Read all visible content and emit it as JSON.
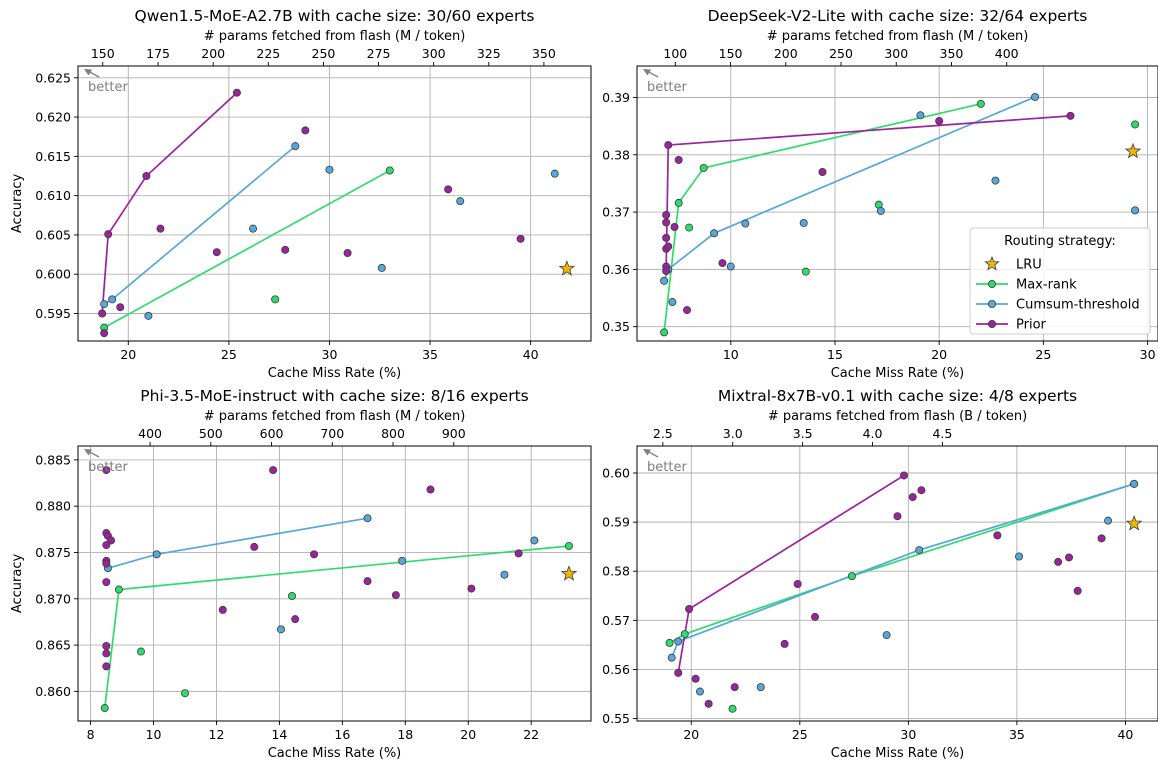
{
  "chart_data": [
    {
      "type": "scatter",
      "title": "Qwen1.5-MoE-A2.7B with cache size: 30/60 experts",
      "xlabel": "Cache Miss Rate (%)",
      "ylabel": "Accuracy",
      "top_xlabel": "# params fetched from flash (M / token)",
      "better_label": "better",
      "xlim": [
        17.5,
        43
      ],
      "ylim": [
        0.5915,
        0.6265
      ],
      "xticks": [
        20,
        25,
        30,
        35,
        40
      ],
      "yticks": [
        0.595,
        0.6,
        0.605,
        0.61,
        0.615,
        0.62,
        0.625
      ],
      "top_ticks": {
        "values": [
          150,
          175,
          200,
          225,
          250,
          275,
          300,
          325,
          350
        ],
        "positions": [
          18.73,
          21.48,
          24.22,
          26.96,
          29.7,
          32.44,
          35.18,
          37.92,
          40.66
        ]
      },
      "series": [
        {
          "name": "LRU",
          "marker": "star",
          "color": "#f2b705",
          "connect": false,
          "points": [
            [
              41.8,
              0.6007
            ]
          ]
        },
        {
          "name": "Max-rank",
          "marker": "circle",
          "color": "#2ddc6b",
          "connect": true,
          "points": [
            [
              18.8,
              0.5932
            ],
            [
              33.0,
              0.6132
            ]
          ]
        },
        {
          "name": "Max-rank",
          "marker": "circle",
          "color": "#2ddc6b",
          "connect": false,
          "points": [
            [
              27.3,
              0.5968
            ]
          ]
        },
        {
          "name": "Cumsum-threshold",
          "marker": "circle",
          "color": "#56a8d8",
          "connect": true,
          "points": [
            [
              18.8,
              0.5962
            ],
            [
              19.2,
              0.5968
            ],
            [
              28.3,
              0.6163
            ]
          ]
        },
        {
          "name": "Cumsum-threshold",
          "marker": "circle",
          "color": "#56a8d8",
          "connect": false,
          "points": [
            [
              21.0,
              0.5947
            ],
            [
              26.2,
              0.6058
            ],
            [
              30.0,
              0.6133
            ],
            [
              32.6,
              0.6008
            ],
            [
              36.5,
              0.6093
            ],
            [
              41.2,
              0.6128
            ]
          ]
        },
        {
          "name": "Prior",
          "marker": "circle",
          "color": "#9b239b",
          "connect": true,
          "points": [
            [
              18.7,
              0.595
            ],
            [
              19.0,
              0.6051
            ],
            [
              20.9,
              0.6125
            ],
            [
              25.4,
              0.6231
            ]
          ]
        },
        {
          "name": "Prior",
          "marker": "circle",
          "color": "#9b239b",
          "connect": false,
          "points": [
            [
              18.8,
              0.5925
            ],
            [
              19.6,
              0.5958
            ],
            [
              21.6,
              0.6058
            ],
            [
              24.4,
              0.6028
            ],
            [
              27.8,
              0.6031
            ],
            [
              28.8,
              0.6183
            ],
            [
              30.9,
              0.6027
            ],
            [
              35.9,
              0.6108
            ],
            [
              39.5,
              0.6045
            ]
          ]
        }
      ]
    },
    {
      "type": "scatter",
      "title": "DeepSeek-V2-Lite with cache size: 32/64 experts",
      "xlabel": "Cache Miss Rate (%)",
      "ylabel": "",
      "top_xlabel": "# params fetched from flash (M / token)",
      "better_label": "better",
      "xlim": [
        5.5,
        30.5
      ],
      "ylim": [
        0.3475,
        0.3955
      ],
      "xticks": [
        10,
        15,
        20,
        25,
        30
      ],
      "yticks": [
        0.35,
        0.36,
        0.37,
        0.38,
        0.39
      ],
      "top_ticks": {
        "values": [
          100,
          150,
          200,
          250,
          300,
          350,
          400
        ],
        "positions": [
          7.34,
          9.99,
          12.64,
          15.29,
          17.94,
          20.59,
          23.24
        ]
      },
      "series": [
        {
          "name": "LRU",
          "marker": "star",
          "color": "#f2b705",
          "connect": false,
          "points": [
            [
              29.3,
              0.3806
            ]
          ]
        },
        {
          "name": "Max-rank",
          "marker": "circle",
          "color": "#2ddc6b",
          "connect": true,
          "points": [
            [
              6.8,
              0.349
            ],
            [
              7.5,
              0.3716
            ],
            [
              8.7,
              0.3777
            ],
            [
              22.0,
              0.3889
            ]
          ]
        },
        {
          "name": "Max-rank",
          "marker": "circle",
          "color": "#2ddc6b",
          "connect": false,
          "points": [
            [
              8.0,
              0.3673
            ],
            [
              13.6,
              0.3596
            ],
            [
              17.1,
              0.3713
            ],
            [
              29.4,
              0.3853
            ]
          ]
        },
        {
          "name": "Cumsum-threshold",
          "marker": "circle",
          "color": "#56a8d8",
          "connect": true,
          "points": [
            [
              6.8,
              0.358
            ],
            [
              7.0,
              0.36
            ],
            [
              9.2,
              0.3663
            ],
            [
              24.6,
              0.3901
            ]
          ]
        },
        {
          "name": "Cumsum-threshold",
          "marker": "circle",
          "color": "#56a8d8",
          "connect": false,
          "points": [
            [
              7.2,
              0.3543
            ],
            [
              10.0,
              0.3605
            ],
            [
              10.7,
              0.368
            ],
            [
              13.5,
              0.3681
            ],
            [
              17.2,
              0.3702
            ],
            [
              19.1,
              0.3869
            ],
            [
              22.7,
              0.3755
            ],
            [
              29.4,
              0.3703
            ]
          ]
        },
        {
          "name": "Prior",
          "marker": "circle",
          "color": "#9b239b",
          "connect": true,
          "points": [
            [
              6.9,
              0.3605
            ],
            [
              7.0,
              0.3817
            ],
            [
              26.3,
              0.3868
            ]
          ]
        },
        {
          "name": "Prior",
          "marker": "circle",
          "color": "#9b239b",
          "connect": false,
          "points": [
            [
              6.9,
              0.3597
            ],
            [
              6.9,
              0.3636
            ],
            [
              7.0,
              0.364
            ],
            [
              6.9,
              0.3655
            ],
            [
              6.9,
              0.3682
            ],
            [
              6.9,
              0.3695
            ],
            [
              7.3,
              0.3674
            ],
            [
              7.5,
              0.3791
            ],
            [
              7.9,
              0.3529
            ],
            [
              9.6,
              0.3611
            ],
            [
              14.4,
              0.377
            ],
            [
              20.0,
              0.3859
            ]
          ]
        }
      ]
    },
    {
      "type": "scatter",
      "title": "Phi-3.5-MoE-instruct with cache size: 8/16 experts",
      "xlabel": "Cache Miss Rate (%)",
      "ylabel": "Accuracy",
      "top_xlabel": "# params fetched from flash (M / token)",
      "better_label": "better",
      "xlim": [
        7.6,
        23.9
      ],
      "ylim": [
        0.8568,
        0.8865
      ],
      "xticks": [
        8,
        10,
        12,
        14,
        16,
        18,
        20,
        22
      ],
      "yticks": [
        0.86,
        0.865,
        0.87,
        0.875,
        0.88,
        0.885
      ],
      "top_ticks": {
        "values": [
          400,
          500,
          600,
          700,
          800,
          900
        ],
        "positions": [
          9.89,
          11.82,
          13.75,
          15.68,
          17.61,
          19.54
        ]
      },
      "series": [
        {
          "name": "LRU",
          "marker": "star",
          "color": "#f2b705",
          "connect": false,
          "points": [
            [
              23.2,
              0.8727
            ]
          ]
        },
        {
          "name": "Max-rank",
          "marker": "circle",
          "color": "#2ddc6b",
          "connect": true,
          "points": [
            [
              8.45,
              0.8582
            ],
            [
              8.9,
              0.871
            ],
            [
              23.2,
              0.8757
            ]
          ]
        },
        {
          "name": "Max-rank",
          "marker": "circle",
          "color": "#2ddc6b",
          "connect": false,
          "points": [
            [
              9.6,
              0.8643
            ],
            [
              11.0,
              0.8598
            ],
            [
              14.4,
              0.8703
            ]
          ]
        },
        {
          "name": "Cumsum-threshold",
          "marker": "circle",
          "color": "#56a8d8",
          "connect": true,
          "points": [
            [
              8.55,
              0.8733
            ],
            [
              10.1,
              0.8748
            ],
            [
              16.8,
              0.8787
            ]
          ]
        },
        {
          "name": "Cumsum-threshold",
          "marker": "circle",
          "color": "#56a8d8",
          "connect": false,
          "points": [
            [
              14.05,
              0.8667
            ],
            [
              17.9,
              0.8741
            ],
            [
              21.15,
              0.8726
            ],
            [
              22.1,
              0.8763
            ]
          ]
        },
        {
          "name": "Prior",
          "marker": "circle",
          "color": "#9b239b",
          "connect": false,
          "points": [
            [
              8.5,
              0.8839
            ],
            [
              8.5,
              0.8771
            ],
            [
              8.55,
              0.8768
            ],
            [
              8.65,
              0.8763
            ],
            [
              8.5,
              0.8758
            ],
            [
              8.5,
              0.8741
            ],
            [
              8.5,
              0.8738
            ],
            [
              8.5,
              0.8718
            ],
            [
              8.5,
              0.8649
            ],
            [
              8.5,
              0.8641
            ],
            [
              8.5,
              0.8627
            ],
            [
              12.2,
              0.8688
            ],
            [
              13.2,
              0.8756
            ],
            [
              13.8,
              0.8839
            ],
            [
              14.5,
              0.8678
            ],
            [
              15.1,
              0.8748
            ],
            [
              16.8,
              0.8719
            ],
            [
              17.7,
              0.8704
            ],
            [
              18.8,
              0.8818
            ],
            [
              20.1,
              0.8711
            ],
            [
              21.6,
              0.8749
            ]
          ]
        }
      ]
    },
    {
      "type": "scatter",
      "title": "Mixtral-8x7B-v0.1 with cache size: 4/8 experts",
      "xlabel": "Cache Miss Rate (%)",
      "ylabel": "",
      "top_xlabel": "# params fetched from flash (B / token)",
      "better_label": "better",
      "xlim": [
        17.5,
        41.5
      ],
      "ylim": [
        0.5495,
        0.6055
      ],
      "xticks": [
        20,
        25,
        30,
        35,
        40
      ],
      "yticks": [
        0.55,
        0.56,
        0.57,
        0.58,
        0.59,
        0.6
      ],
      "top_ticks": {
        "values": [
          2.5,
          3.0,
          3.5,
          4.0,
          4.5
        ],
        "positions": [
          18.69,
          21.91,
          25.13,
          28.35,
          31.57
        ]
      },
      "series": [
        {
          "name": "LRU",
          "marker": "star",
          "color": "#f2b705",
          "connect": false,
          "points": [
            [
              40.4,
              0.5897
            ]
          ]
        },
        {
          "name": "Max-rank",
          "marker": "circle",
          "color": "#2ddc6b",
          "connect": true,
          "points": [
            [
              19.0,
              0.5654
            ],
            [
              19.7,
              0.5672
            ],
            [
              27.4,
              0.579
            ],
            [
              40.4,
              0.5978
            ]
          ]
        },
        {
          "name": "Max-rank",
          "marker": "circle",
          "color": "#2ddc6b",
          "connect": false,
          "points": [
            [
              21.9,
              0.552
            ]
          ]
        },
        {
          "name": "Cumsum-threshold",
          "marker": "circle",
          "color": "#56a8d8",
          "connect": true,
          "points": [
            [
              19.1,
              0.5624
            ],
            [
              19.4,
              0.5657
            ],
            [
              30.5,
              0.5843
            ],
            [
              40.4,
              0.5978
            ]
          ]
        },
        {
          "name": "Cumsum-threshold",
          "marker": "circle",
          "color": "#56a8d8",
          "connect": false,
          "points": [
            [
              20.4,
              0.5555
            ],
            [
              23.2,
              0.5564
            ],
            [
              29.0,
              0.567
            ],
            [
              35.1,
              0.583
            ],
            [
              39.2,
              0.5903
            ]
          ]
        },
        {
          "name": "Prior",
          "marker": "circle",
          "color": "#9b239b",
          "connect": true,
          "points": [
            [
              19.4,
              0.5593
            ],
            [
              19.9,
              0.5723
            ],
            [
              29.8,
              0.5995
            ]
          ]
        },
        {
          "name": "Prior",
          "marker": "circle",
          "color": "#9b239b",
          "connect": false,
          "points": [
            [
              20.2,
              0.5581
            ],
            [
              20.8,
              0.553
            ],
            [
              22.0,
              0.5564
            ],
            [
              24.3,
              0.5652
            ],
            [
              24.9,
              0.5774
            ],
            [
              25.7,
              0.5707
            ],
            [
              29.5,
              0.5912
            ],
            [
              30.2,
              0.5951
            ],
            [
              30.6,
              0.5965
            ],
            [
              34.1,
              0.5873
            ],
            [
              36.9,
              0.5819
            ],
            [
              37.4,
              0.5828
            ],
            [
              37.8,
              0.576
            ],
            [
              38.9,
              0.5867
            ]
          ]
        }
      ]
    }
  ],
  "legend": {
    "title": "Routing strategy:",
    "items": [
      {
        "label": "LRU",
        "marker": "star",
        "color": "#f2b705",
        "line": false
      },
      {
        "label": "Max-rank",
        "marker": "circle",
        "color": "#2ddc6b",
        "line": true
      },
      {
        "label": "Cumsum-threshold",
        "marker": "circle",
        "color": "#56a8d8",
        "line": true
      },
      {
        "label": "Prior",
        "marker": "circle",
        "color": "#9b239b",
        "line": true
      }
    ],
    "placement": "lower-right of top-right panel"
  },
  "colors": {
    "grid": "#b0b0b0",
    "better": "#7f7f7f",
    "marker_edge": "#3c3c3c"
  }
}
